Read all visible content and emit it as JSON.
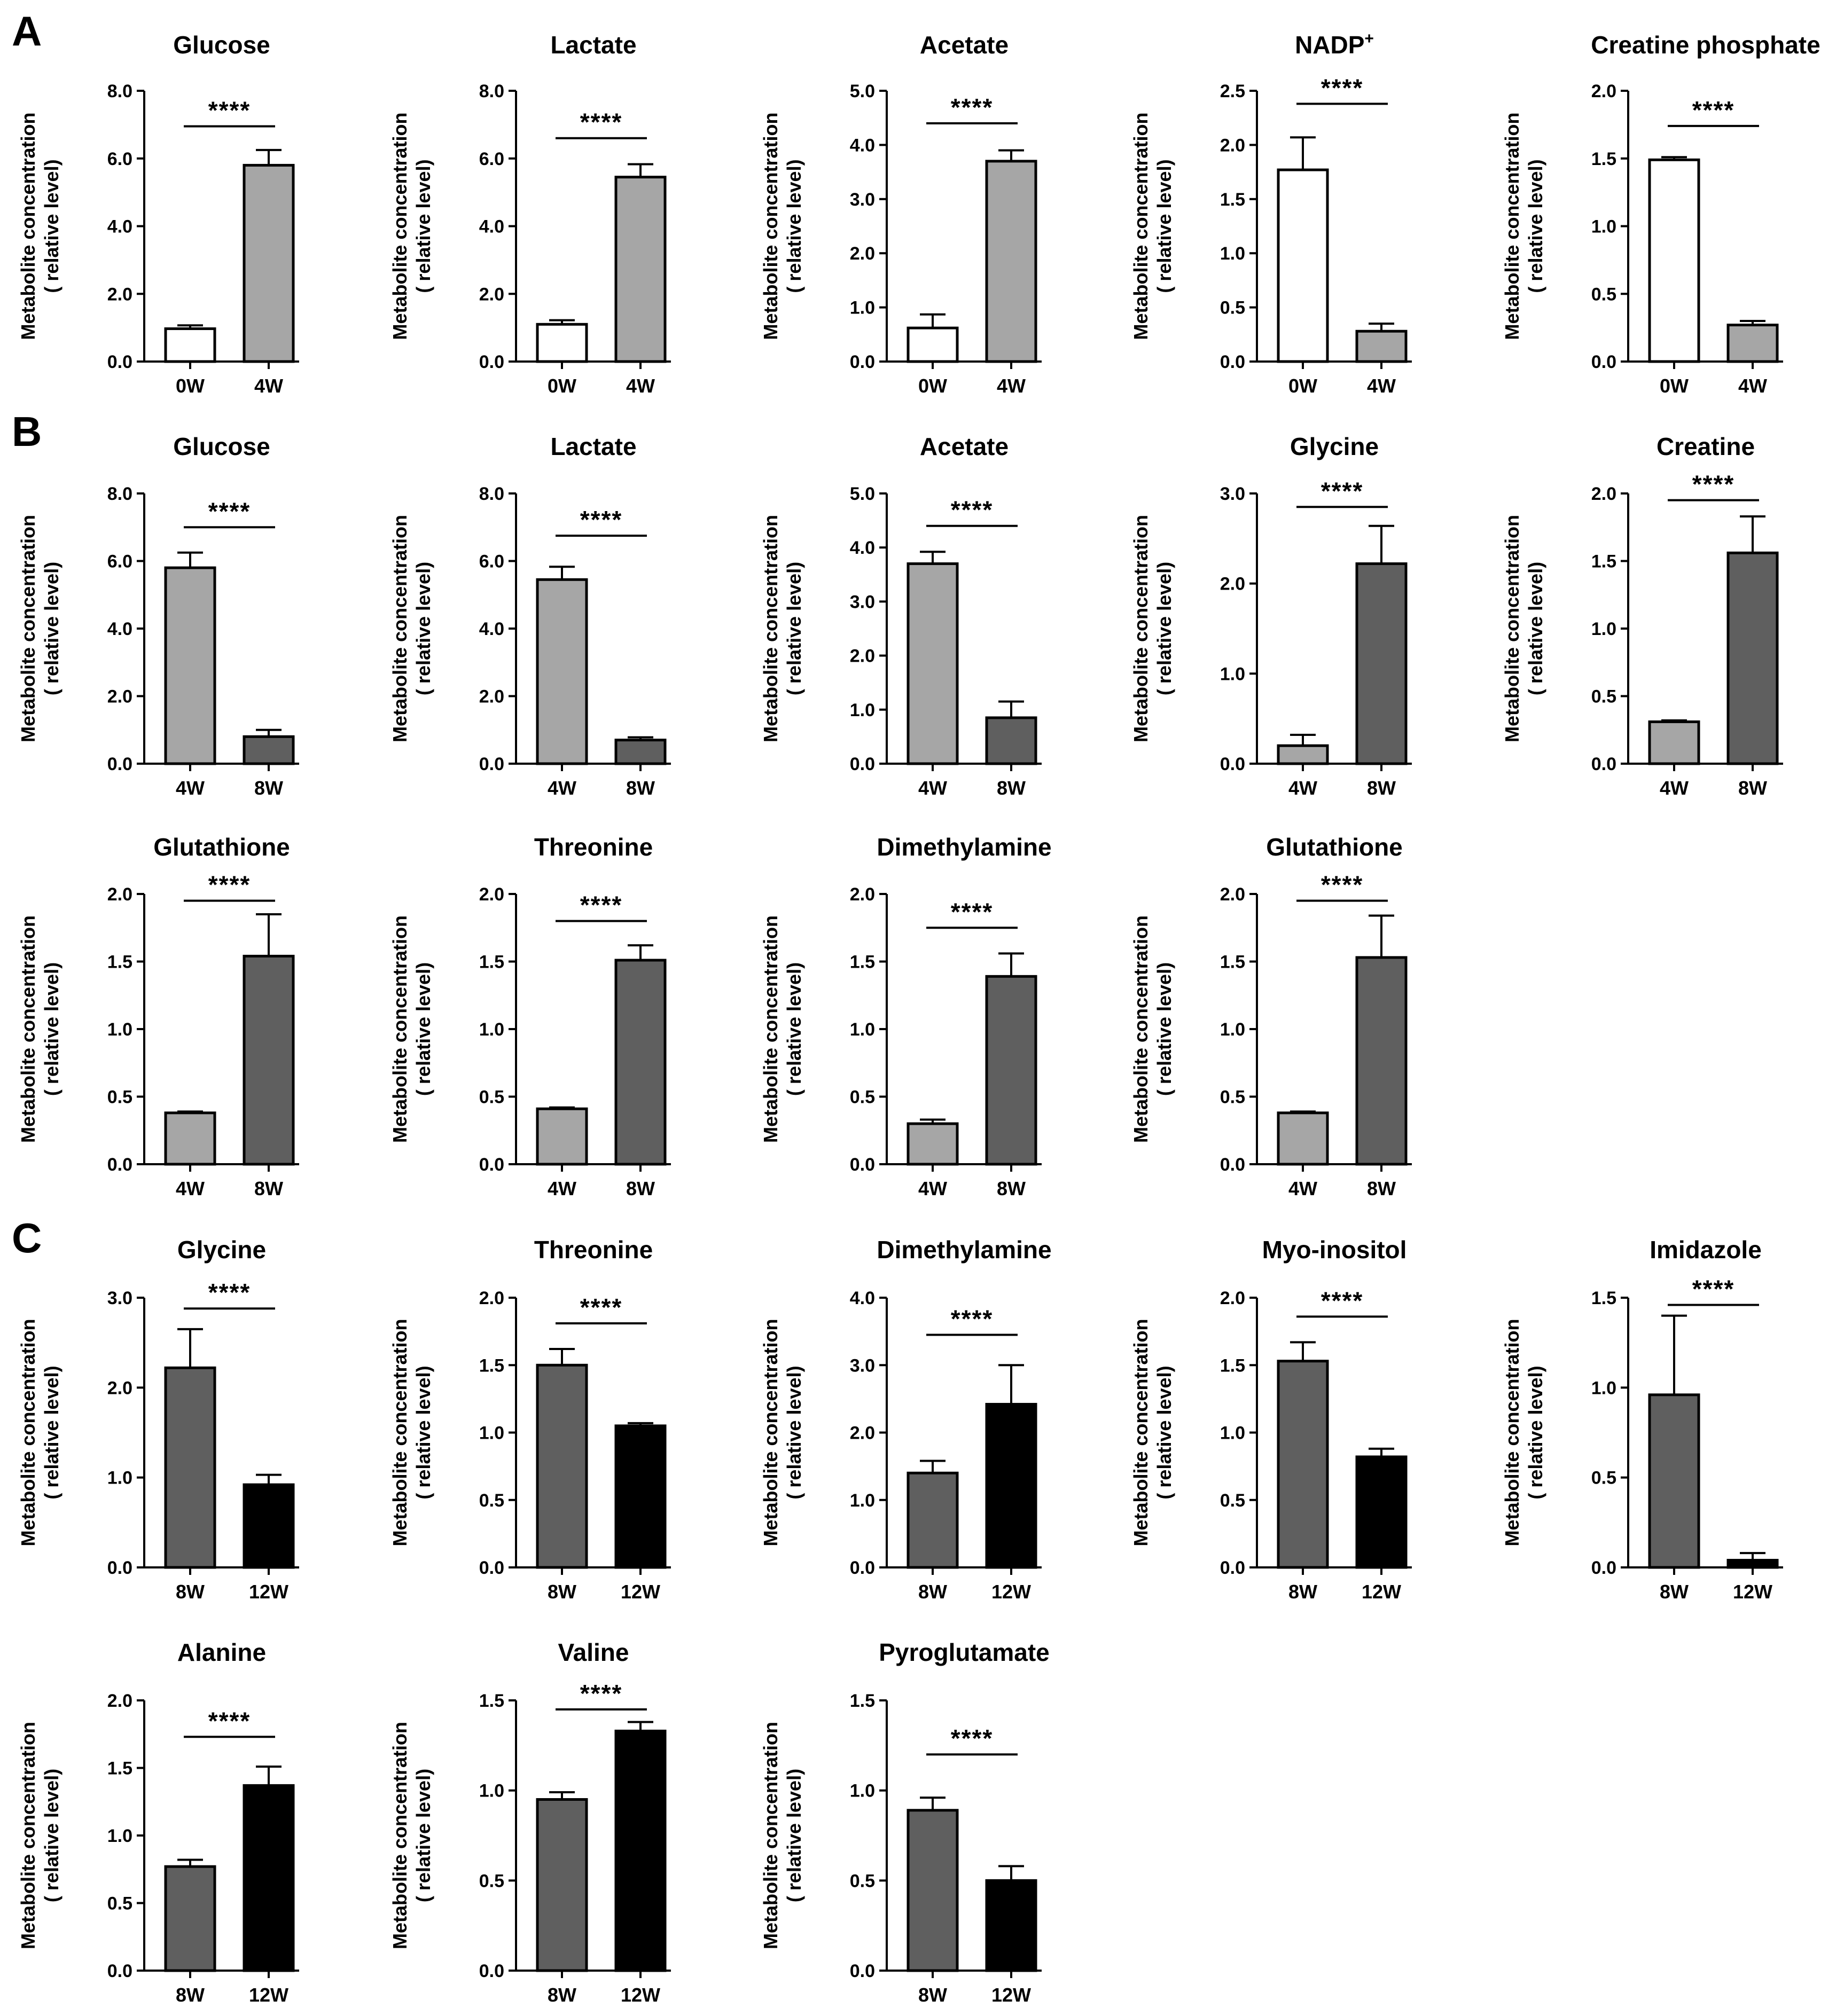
{
  "figure": {
    "panels": [
      {
        "letter": "A",
        "row": 0
      },
      {
        "letter": "B",
        "row": 1
      },
      {
        "letter": "C",
        "row": 3
      }
    ],
    "group_colors": {
      "0W": "#ffffff",
      "4W": "#a6a6a6",
      "8W": "#5f5f5f",
      "12W": "#000000"
    }
  },
  "chart_data": [
    {
      "type": "bar",
      "panel": "A",
      "row": 0,
      "col": 0,
      "title": "Glucose",
      "title_sup": "",
      "ylabel": [
        "Metabolite concentration",
        "( relative level)"
      ],
      "ylim": [
        0,
        8
      ],
      "yticks": [
        "0.0",
        "2.0",
        "4.0",
        "6.0",
        "8.0"
      ],
      "categories": [
        "0W",
        "4W"
      ],
      "values": [
        0.97,
        5.8
      ],
      "errors": [
        0.1,
        0.45
      ],
      "significance": "****",
      "sig_level": 6.95
    },
    {
      "type": "bar",
      "panel": "A",
      "row": 0,
      "col": 1,
      "title": "Lactate",
      "title_sup": "",
      "ylabel": [
        "Metabolite concentration",
        "( relative level)"
      ],
      "ylim": [
        0,
        8
      ],
      "yticks": [
        "0.0",
        "2.0",
        "4.0",
        "6.0",
        "8.0"
      ],
      "categories": [
        "0W",
        "4W"
      ],
      "values": [
        1.1,
        5.45
      ],
      "errors": [
        0.12,
        0.38
      ],
      "significance": "****",
      "sig_level": 6.6
    },
    {
      "type": "bar",
      "panel": "A",
      "row": 0,
      "col": 2,
      "title": "Acetate",
      "title_sup": "",
      "ylabel": [
        "Metabolite concentration",
        "( relative level)"
      ],
      "ylim": [
        0,
        5
      ],
      "yticks": [
        "0.0",
        "1.0",
        "2.0",
        "3.0",
        "4.0",
        "5.0"
      ],
      "categories": [
        "0W",
        "4W"
      ],
      "values": [
        0.62,
        3.7
      ],
      "errors": [
        0.25,
        0.2
      ],
      "significance": "****",
      "sig_level": 4.4
    },
    {
      "type": "bar",
      "panel": "A",
      "row": 0,
      "col": 3,
      "title": "NADP",
      "title_sup": "+",
      "ylabel": [
        "Metabolite concentration",
        "( relative level)"
      ],
      "ylim": [
        0,
        2.5
      ],
      "yticks": [
        "0.0",
        "0.5",
        "1.0",
        "1.5",
        "2.0",
        "2.5"
      ],
      "categories": [
        "0W",
        "4W"
      ],
      "values": [
        1.77,
        0.28
      ],
      "errors": [
        0.3,
        0.07
      ],
      "significance": "****",
      "sig_level": 2.38
    },
    {
      "type": "bar",
      "panel": "A",
      "row": 0,
      "col": 4,
      "title": "Creatine phosphate",
      "title_sup": "",
      "ylabel": [
        "Metabolite concentration",
        "( relative level)"
      ],
      "ylim": [
        0,
        2
      ],
      "yticks": [
        "0.0",
        "0.5",
        "1.0",
        "1.5",
        "2.0"
      ],
      "categories": [
        "0W",
        "4W"
      ],
      "values": [
        1.49,
        0.27
      ],
      "errors": [
        0.02,
        0.03
      ],
      "significance": "****",
      "sig_level": 1.74
    },
    {
      "type": "bar",
      "panel": "B",
      "row": 1,
      "col": 0,
      "title": "Glucose",
      "title_sup": "",
      "ylabel": [
        "Metabolite concentration",
        "( relative level)"
      ],
      "ylim": [
        0,
        8
      ],
      "yticks": [
        "0.0",
        "2.0",
        "4.0",
        "6.0",
        "8.0"
      ],
      "categories": [
        "4W",
        "8W"
      ],
      "values": [
        5.8,
        0.8
      ],
      "errors": [
        0.45,
        0.2
      ],
      "significance": "****",
      "sig_level": 7.0
    },
    {
      "type": "bar",
      "panel": "B",
      "row": 1,
      "col": 1,
      "title": "Lactate",
      "title_sup": "",
      "ylabel": [
        "Metabolite concentration",
        "( relative level)"
      ],
      "ylim": [
        0,
        8
      ],
      "yticks": [
        "0.0",
        "2.0",
        "4.0",
        "6.0",
        "8.0"
      ],
      "categories": [
        "4W",
        "8W"
      ],
      "values": [
        5.45,
        0.7
      ],
      "errors": [
        0.38,
        0.08
      ],
      "significance": "****",
      "sig_level": 6.75
    },
    {
      "type": "bar",
      "panel": "B",
      "row": 1,
      "col": 2,
      "title": "Acetate",
      "title_sup": "",
      "ylabel": [
        "Metabolite concentration",
        "( relative level)"
      ],
      "ylim": [
        0,
        5
      ],
      "yticks": [
        "0.0",
        "1.0",
        "2.0",
        "3.0",
        "4.0",
        "5.0"
      ],
      "categories": [
        "4W",
        "8W"
      ],
      "values": [
        3.7,
        0.85
      ],
      "errors": [
        0.22,
        0.3
      ],
      "significance": "****",
      "sig_level": 4.4
    },
    {
      "type": "bar",
      "panel": "B",
      "row": 1,
      "col": 3,
      "title": "Glycine",
      "title_sup": "",
      "ylabel": [
        "Metabolite concentration",
        "( relative level)"
      ],
      "ylim": [
        0,
        3
      ],
      "yticks": [
        "0.0",
        "1.0",
        "2.0",
        "3.0"
      ],
      "categories": [
        "4W",
        "8W"
      ],
      "values": [
        0.2,
        2.22
      ],
      "errors": [
        0.12,
        0.42
      ],
      "significance": "****",
      "sig_level": 2.85
    },
    {
      "type": "bar",
      "panel": "B",
      "row": 1,
      "col": 4,
      "title": "Creatine",
      "title_sup": "",
      "ylabel": [
        "Metabolite concentration",
        "( relative level)"
      ],
      "ylim": [
        0,
        2
      ],
      "yticks": [
        "0.0",
        "0.5",
        "1.0",
        "1.5",
        "2.0"
      ],
      "categories": [
        "4W",
        "8W"
      ],
      "values": [
        0.31,
        1.56
      ],
      "errors": [
        0.01,
        0.27
      ],
      "significance": "****",
      "sig_level": 1.95
    },
    {
      "type": "bar",
      "panel": "B",
      "row": 2,
      "col": 0,
      "title": "Glutathione",
      "title_sup": "",
      "ylabel": [
        "Metabolite concentration",
        "( relative level)"
      ],
      "ylim": [
        0,
        2
      ],
      "yticks": [
        "0.0",
        "0.5",
        "1.0",
        "1.5",
        "2.0"
      ],
      "categories": [
        "4W",
        "8W"
      ],
      "values": [
        0.38,
        1.54
      ],
      "errors": [
        0.01,
        0.31
      ],
      "significance": "****",
      "sig_level": 1.95
    },
    {
      "type": "bar",
      "panel": "B",
      "row": 2,
      "col": 1,
      "title": "Threonine",
      "title_sup": "",
      "ylabel": [
        "Metabolite concentration",
        "( relative level)"
      ],
      "ylim": [
        0,
        2
      ],
      "yticks": [
        "0.0",
        "0.5",
        "1.0",
        "1.5",
        "2.0"
      ],
      "categories": [
        "4W",
        "8W"
      ],
      "values": [
        0.41,
        1.51
      ],
      "errors": [
        0.01,
        0.11
      ],
      "significance": "****",
      "sig_level": 1.8
    },
    {
      "type": "bar",
      "panel": "B",
      "row": 2,
      "col": 2,
      "title": "Dimethylamine",
      "title_sup": "",
      "ylabel": [
        "Metabolite concentration",
        "( relative level)"
      ],
      "ylim": [
        0,
        2
      ],
      "yticks": [
        "0.0",
        "0.5",
        "1.0",
        "1.5",
        "2.0"
      ],
      "categories": [
        "4W",
        "8W"
      ],
      "values": [
        0.3,
        1.39
      ],
      "errors": [
        0.03,
        0.17
      ],
      "significance": "****",
      "sig_level": 1.75
    },
    {
      "type": "bar",
      "panel": "B",
      "row": 2,
      "col": 3,
      "title": "Glutathione",
      "title_sup": "",
      "ylabel": [
        "Metabolite concentration",
        "( relative level)"
      ],
      "ylim": [
        0,
        2
      ],
      "yticks": [
        "0.0",
        "0.5",
        "1.0",
        "1.5",
        "2.0"
      ],
      "categories": [
        "4W",
        "8W"
      ],
      "values": [
        0.38,
        1.53
      ],
      "errors": [
        0.01,
        0.31
      ],
      "significance": "****",
      "sig_level": 1.95
    },
    {
      "type": "bar",
      "panel": "C",
      "row": 3,
      "col": 0,
      "title": "Glycine",
      "title_sup": "",
      "ylabel": [
        "Metabolite concentration",
        "( relative level)"
      ],
      "ylim": [
        0,
        3
      ],
      "yticks": [
        "0.0",
        "1.0",
        "2.0",
        "3.0"
      ],
      "categories": [
        "8W",
        "12W"
      ],
      "values": [
        2.22,
        0.92
      ],
      "errors": [
        0.43,
        0.11
      ],
      "significance": "****",
      "sig_level": 2.88
    },
    {
      "type": "bar",
      "panel": "C",
      "row": 3,
      "col": 1,
      "title": "Threonine",
      "title_sup": "",
      "ylabel": [
        "Metabolite concentration",
        "( relative level)"
      ],
      "ylim": [
        0,
        2
      ],
      "yticks": [
        "0.0",
        "0.5",
        "1.0",
        "1.5",
        "2.0"
      ],
      "categories": [
        "8W",
        "12W"
      ],
      "values": [
        1.5,
        1.05
      ],
      "errors": [
        0.12,
        0.02
      ],
      "significance": "****",
      "sig_level": 1.81
    },
    {
      "type": "bar",
      "panel": "C",
      "row": 3,
      "col": 2,
      "title": "Dimethylamine",
      "title_sup": "",
      "ylabel": [
        "Metabolite concentration",
        "( relative level)"
      ],
      "ylim": [
        0,
        4
      ],
      "yticks": [
        "0.0",
        "1.0",
        "2.0",
        "3.0",
        "4.0"
      ],
      "categories": [
        "8W",
        "12W"
      ],
      "values": [
        1.4,
        2.42
      ],
      "errors": [
        0.18,
        0.58
      ],
      "significance": "****",
      "sig_level": 3.45
    },
    {
      "type": "bar",
      "panel": "C",
      "row": 3,
      "col": 3,
      "title": "Myo-inositol",
      "title_sup": "",
      "ylabel": [
        "Metabolite concentration",
        "( relative level)"
      ],
      "ylim": [
        0,
        2
      ],
      "yticks": [
        "0.0",
        "0.5",
        "1.0",
        "1.5",
        "2.0"
      ],
      "categories": [
        "8W",
        "12W"
      ],
      "values": [
        1.53,
        0.82
      ],
      "errors": [
        0.14,
        0.06
      ],
      "significance": "****",
      "sig_level": 1.86
    },
    {
      "type": "bar",
      "panel": "C",
      "row": 3,
      "col": 4,
      "title": "Imidazole",
      "title_sup": "",
      "ylabel": [
        "Metabolite concentration",
        "( relative level)"
      ],
      "ylim": [
        0,
        1.5
      ],
      "yticks": [
        "0.0",
        "0.5",
        "1.0",
        "1.5"
      ],
      "categories": [
        "8W",
        "12W"
      ],
      "values": [
        0.96,
        0.04
      ],
      "errors": [
        0.44,
        0.04
      ],
      "significance": "****",
      "sig_level": 1.46
    },
    {
      "type": "bar",
      "panel": "C",
      "row": 4,
      "col": 0,
      "title": "Alanine",
      "title_sup": "",
      "ylabel": [
        "Metabolite concentration",
        "( relative level)"
      ],
      "ylim": [
        0,
        2
      ],
      "yticks": [
        "0.0",
        "0.5",
        "1.0",
        "1.5",
        "2.0"
      ],
      "categories": [
        "8W",
        "12W"
      ],
      "values": [
        0.77,
        1.37
      ],
      "errors": [
        0.05,
        0.14
      ],
      "significance": "****",
      "sig_level": 1.73
    },
    {
      "type": "bar",
      "panel": "C",
      "row": 4,
      "col": 1,
      "title": "Valine",
      "title_sup": "",
      "ylabel": [
        "Metabolite concentration",
        "( relative level)"
      ],
      "ylim": [
        0,
        1.5
      ],
      "yticks": [
        "0.0",
        "0.5",
        "1.0",
        "1.5"
      ],
      "categories": [
        "8W",
        "12W"
      ],
      "values": [
        0.95,
        1.33
      ],
      "errors": [
        0.04,
        0.05
      ],
      "significance": "****",
      "sig_level": 1.45
    },
    {
      "type": "bar",
      "panel": "C",
      "row": 4,
      "col": 2,
      "title": "Pyroglutamate",
      "title_sup": "",
      "ylabel": [
        "Metabolite concentration",
        "( relative level)"
      ],
      "ylim": [
        0,
        1.5
      ],
      "yticks": [
        "0.0",
        "0.5",
        "1.0",
        "1.5"
      ],
      "categories": [
        "8W",
        "12W"
      ],
      "values": [
        0.89,
        0.5
      ],
      "errors": [
        0.07,
        0.08
      ],
      "significance": "****",
      "sig_level": 1.2
    }
  ]
}
